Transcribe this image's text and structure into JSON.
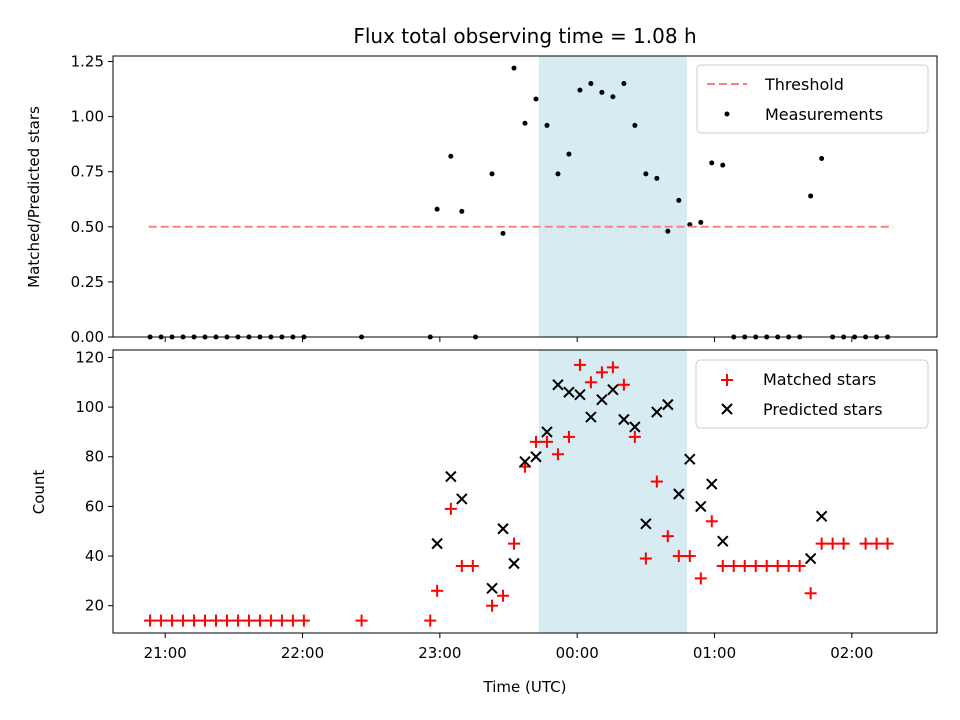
{
  "chart_data": [
    {
      "type": "scatter",
      "title": "Flux total observing time = 1.08 h",
      "xlabel": "",
      "ylabel": "Matched/Predicted stars",
      "x_unit": "hours since 21:00 UTC",
      "xlim": [
        -0.38,
        5.62
      ],
      "ylim": [
        0.0,
        1.275
      ],
      "yticks": [
        "0.00",
        "0.25",
        "0.50",
        "0.75",
        "1.00",
        "1.25"
      ],
      "xticks": [
        "21:00",
        "22:00",
        "23:00",
        "00:00",
        "01:00",
        "02:00"
      ],
      "shaded_span": [
        2.72,
        3.8
      ],
      "threshold": {
        "name": "Threshold",
        "y": 0.5,
        "x": [
          -0.12,
          5.3
        ],
        "color": "#ff7f7f"
      },
      "measurements": {
        "name": "Measurements",
        "color": "#000000",
        "points": [
          [
            -0.11,
            0
          ],
          [
            -0.03,
            0
          ],
          [
            0.05,
            0
          ],
          [
            0.13,
            0
          ],
          [
            0.21,
            0
          ],
          [
            0.29,
            0
          ],
          [
            0.37,
            0
          ],
          [
            0.45,
            0
          ],
          [
            0.53,
            0
          ],
          [
            0.61,
            0
          ],
          [
            0.69,
            0
          ],
          [
            0.77,
            0
          ],
          [
            0.85,
            0
          ],
          [
            0.93,
            0
          ],
          [
            1.01,
            0
          ],
          [
            1.43,
            0
          ],
          [
            1.93,
            0
          ],
          [
            1.98,
            0.58
          ],
          [
            2.08,
            0.82
          ],
          [
            2.16,
            0.57
          ],
          [
            2.26,
            0
          ],
          [
            2.38,
            0.74
          ],
          [
            2.46,
            0.47
          ],
          [
            2.54,
            1.22
          ],
          [
            2.62,
            0.97
          ],
          [
            2.7,
            1.08
          ],
          [
            2.78,
            0.96
          ],
          [
            2.86,
            0.74
          ],
          [
            2.94,
            0.83
          ],
          [
            3.02,
            1.12
          ],
          [
            3.1,
            1.15
          ],
          [
            3.18,
            1.11
          ],
          [
            3.26,
            1.09
          ],
          [
            3.34,
            1.15
          ],
          [
            3.42,
            0.96
          ],
          [
            3.5,
            0.74
          ],
          [
            3.58,
            0.72
          ],
          [
            3.66,
            0.48
          ],
          [
            3.74,
            0.62
          ],
          [
            3.82,
            0.51
          ],
          [
            3.9,
            0.52
          ],
          [
            3.98,
            0.79
          ],
          [
            4.06,
            0.78
          ],
          [
            4.14,
            0
          ],
          [
            4.22,
            0
          ],
          [
            4.3,
            0
          ],
          [
            4.38,
            0
          ],
          [
            4.46,
            0
          ],
          [
            4.54,
            0
          ],
          [
            4.62,
            0
          ],
          [
            4.7,
            0.64
          ],
          [
            4.78,
            0.81
          ],
          [
            4.86,
            0
          ],
          [
            4.94,
            0
          ],
          [
            5.02,
            0
          ],
          [
            5.1,
            0
          ],
          [
            5.18,
            0
          ],
          [
            5.26,
            0
          ]
        ]
      },
      "legend_position": "top-right"
    },
    {
      "type": "scatter",
      "title": "",
      "xlabel": "Time (UTC)",
      "ylabel": "Count",
      "x_unit": "hours since 21:00 UTC",
      "xlim": [
        -0.38,
        5.62
      ],
      "ylim": [
        9,
        123
      ],
      "yticks": [
        "20",
        "40",
        "60",
        "80",
        "100",
        "120"
      ],
      "xticks": [
        "21:00",
        "22:00",
        "23:00",
        "00:00",
        "01:00",
        "02:00"
      ],
      "shaded_span": [
        2.72,
        3.8
      ],
      "series": [
        {
          "name": "Matched stars",
          "marker": "plus",
          "color": "#ff0000",
          "points": [
            [
              -0.11,
              14
            ],
            [
              -0.03,
              14
            ],
            [
              0.05,
              14
            ],
            [
              0.13,
              14
            ],
            [
              0.21,
              14
            ],
            [
              0.29,
              14
            ],
            [
              0.37,
              14
            ],
            [
              0.45,
              14
            ],
            [
              0.53,
              14
            ],
            [
              0.61,
              14
            ],
            [
              0.69,
              14
            ],
            [
              0.77,
              14
            ],
            [
              0.85,
              14
            ],
            [
              0.93,
              14
            ],
            [
              1.01,
              14
            ],
            [
              1.43,
              14
            ],
            [
              1.93,
              14
            ],
            [
              1.98,
              26
            ],
            [
              2.08,
              59
            ],
            [
              2.16,
              36
            ],
            [
              2.24,
              36
            ],
            [
              2.38,
              20
            ],
            [
              2.46,
              24
            ],
            [
              2.54,
              45
            ],
            [
              2.62,
              76
            ],
            [
              2.7,
              86
            ],
            [
              2.78,
              86
            ],
            [
              2.86,
              81
            ],
            [
              2.94,
              88
            ],
            [
              3.02,
              117
            ],
            [
              3.1,
              110
            ],
            [
              3.18,
              114
            ],
            [
              3.26,
              116
            ],
            [
              3.34,
              109
            ],
            [
              3.42,
              88
            ],
            [
              3.5,
              39
            ],
            [
              3.58,
              70
            ],
            [
              3.66,
              48
            ],
            [
              3.74,
              40
            ],
            [
              3.82,
              40
            ],
            [
              3.9,
              31
            ],
            [
              3.98,
              54
            ],
            [
              4.06,
              36
            ],
            [
              4.14,
              36
            ],
            [
              4.22,
              36
            ],
            [
              4.3,
              36
            ],
            [
              4.38,
              36
            ],
            [
              4.46,
              36
            ],
            [
              4.54,
              36
            ],
            [
              4.62,
              36
            ],
            [
              4.7,
              25
            ],
            [
              4.78,
              45
            ],
            [
              4.86,
              45
            ],
            [
              4.94,
              45
            ],
            [
              5.1,
              45
            ],
            [
              5.18,
              45
            ],
            [
              5.26,
              45
            ]
          ]
        },
        {
          "name": "Predicted stars",
          "marker": "x",
          "color": "#000000",
          "points": [
            [
              1.98,
              45
            ],
            [
              2.08,
              72
            ],
            [
              2.16,
              63
            ],
            [
              2.38,
              27
            ],
            [
              2.46,
              51
            ],
            [
              2.54,
              37
            ],
            [
              2.62,
              78
            ],
            [
              2.7,
              80
            ],
            [
              2.78,
              90
            ],
            [
              2.86,
              109
            ],
            [
              2.94,
              106
            ],
            [
              3.02,
              105
            ],
            [
              3.1,
              96
            ],
            [
              3.18,
              103
            ],
            [
              3.26,
              107
            ],
            [
              3.34,
              95
            ],
            [
              3.42,
              92
            ],
            [
              3.5,
              53
            ],
            [
              3.58,
              98
            ],
            [
              3.66,
              101
            ],
            [
              3.74,
              65
            ],
            [
              3.82,
              79
            ],
            [
              3.9,
              60
            ],
            [
              3.98,
              69
            ],
            [
              4.06,
              46
            ],
            [
              4.7,
              39
            ],
            [
              4.78,
              56
            ]
          ]
        }
      ],
      "legend_position": "top-right"
    }
  ]
}
